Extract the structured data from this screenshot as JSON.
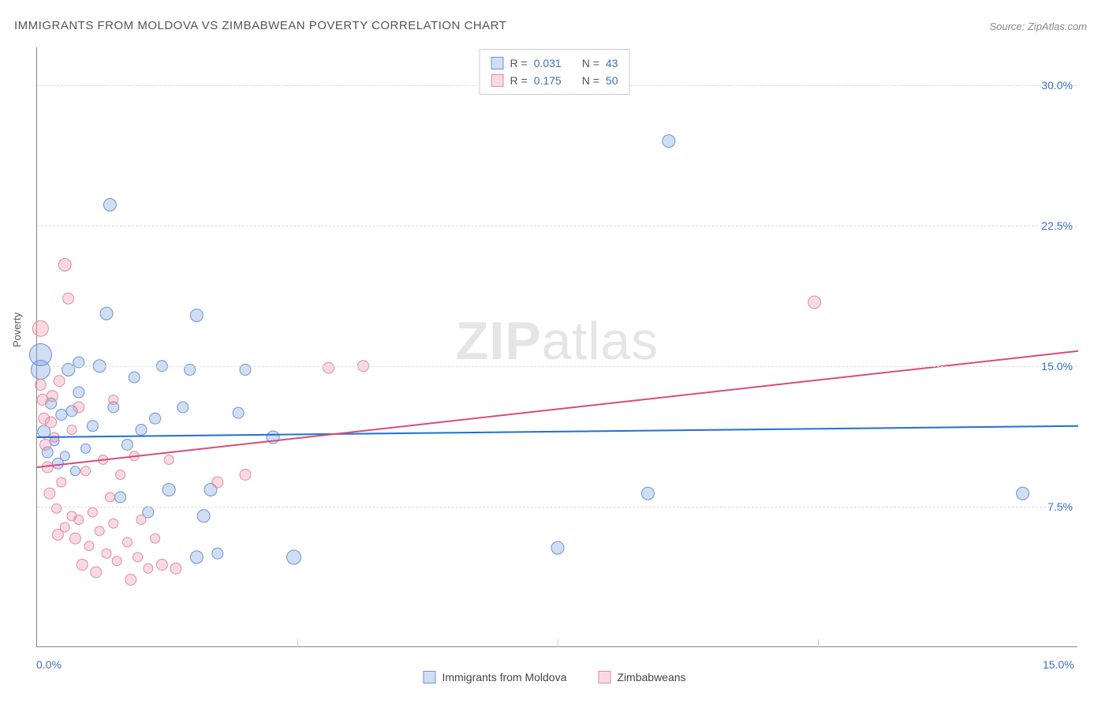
{
  "chart": {
    "type": "scatter",
    "title": "IMMIGRANTS FROM MOLDOVA VS ZIMBABWEAN POVERTY CORRELATION CHART",
    "source_label": "Source: ZipAtlas.com",
    "watermark": "ZIPatlas",
    "y_axis_label": "Poverty",
    "xlim": [
      0,
      15
    ],
    "ylim": [
      0,
      32
    ],
    "x_ticks": [
      {
        "pos": 0,
        "label": "0.0%"
      },
      {
        "pos": 15,
        "label": "15.0%"
      }
    ],
    "y_ticks": [
      {
        "pos": 7.5,
        "label": "7.5%"
      },
      {
        "pos": 15.0,
        "label": "15.0%"
      },
      {
        "pos": 22.5,
        "label": "22.5%"
      },
      {
        "pos": 30.0,
        "label": "30.0%"
      }
    ],
    "x_minor_grid": [
      3.75,
      7.5,
      11.25
    ],
    "background_color": "#ffffff",
    "grid_color": "#dddddd",
    "minor_grid_color": "#eeeeee",
    "axis_color": "#888888",
    "tick_label_color": "#3b6fc9",
    "title_color": "#555555",
    "title_fontsize": 15,
    "tick_fontsize": 14,
    "series": [
      {
        "name": "Immigrants from Moldova",
        "fill": "rgba(120,160,220,0.35)",
        "stroke": "#6a94d4",
        "line_color": "#1f6fd6",
        "line_width": 2,
        "R": 0.031,
        "N": 43,
        "trend": {
          "x1": 0,
          "y1": 11.2,
          "x2": 15,
          "y2": 11.8
        },
        "points": [
          {
            "x": 0.05,
            "y": 14.8,
            "r": 12
          },
          {
            "x": 0.05,
            "y": 15.6,
            "r": 14
          },
          {
            "x": 0.1,
            "y": 11.5,
            "r": 8
          },
          {
            "x": 0.15,
            "y": 10.4,
            "r": 7
          },
          {
            "x": 0.2,
            "y": 13.0,
            "r": 7
          },
          {
            "x": 0.25,
            "y": 11.0,
            "r": 6
          },
          {
            "x": 0.3,
            "y": 9.8,
            "r": 7
          },
          {
            "x": 0.35,
            "y": 12.4,
            "r": 7
          },
          {
            "x": 0.4,
            "y": 10.2,
            "r": 6
          },
          {
            "x": 0.45,
            "y": 14.8,
            "r": 8
          },
          {
            "x": 0.5,
            "y": 12.6,
            "r": 7
          },
          {
            "x": 0.55,
            "y": 9.4,
            "r": 6
          },
          {
            "x": 0.6,
            "y": 13.6,
            "r": 7
          },
          {
            "x": 0.7,
            "y": 10.6,
            "r": 6
          },
          {
            "x": 0.8,
            "y": 11.8,
            "r": 7
          },
          {
            "x": 0.9,
            "y": 15.0,
            "r": 8
          },
          {
            "x": 1.0,
            "y": 17.8,
            "r": 8
          },
          {
            "x": 1.05,
            "y": 23.6,
            "r": 8
          },
          {
            "x": 1.1,
            "y": 12.8,
            "r": 7
          },
          {
            "x": 1.2,
            "y": 8.0,
            "r": 7
          },
          {
            "x": 1.3,
            "y": 10.8,
            "r": 7
          },
          {
            "x": 1.4,
            "y": 14.4,
            "r": 7
          },
          {
            "x": 1.6,
            "y": 7.2,
            "r": 7
          },
          {
            "x": 1.7,
            "y": 12.2,
            "r": 7
          },
          {
            "x": 1.8,
            "y": 15.0,
            "r": 7
          },
          {
            "x": 1.9,
            "y": 8.4,
            "r": 8
          },
          {
            "x": 2.1,
            "y": 12.8,
            "r": 7
          },
          {
            "x": 2.2,
            "y": 14.8,
            "r": 7
          },
          {
            "x": 2.3,
            "y": 17.7,
            "r": 8
          },
          {
            "x": 2.3,
            "y": 4.8,
            "r": 8
          },
          {
            "x": 2.4,
            "y": 7.0,
            "r": 8
          },
          {
            "x": 2.5,
            "y": 8.4,
            "r": 8
          },
          {
            "x": 2.6,
            "y": 5.0,
            "r": 7
          },
          {
            "x": 2.9,
            "y": 12.5,
            "r": 7
          },
          {
            "x": 3.0,
            "y": 14.8,
            "r": 7
          },
          {
            "x": 3.4,
            "y": 11.2,
            "r": 8
          },
          {
            "x": 3.7,
            "y": 4.8,
            "r": 9
          },
          {
            "x": 7.5,
            "y": 5.3,
            "r": 8
          },
          {
            "x": 8.8,
            "y": 8.2,
            "r": 8
          },
          {
            "x": 9.1,
            "y": 27.0,
            "r": 8
          },
          {
            "x": 14.2,
            "y": 8.2,
            "r": 8
          },
          {
            "x": 0.6,
            "y": 15.2,
            "r": 7
          },
          {
            "x": 1.5,
            "y": 11.6,
            "r": 7
          }
        ]
      },
      {
        "name": "Zimbabweans",
        "fill": "rgba(235,140,165,0.32)",
        "stroke": "#e08aa3",
        "line_color": "#d94b7a",
        "line_width": 2,
        "R": 0.175,
        "N": 50,
        "trend": {
          "x1": 0,
          "y1": 9.6,
          "x2": 15,
          "y2": 15.8
        },
        "points": [
          {
            "x": 0.05,
            "y": 17.0,
            "r": 10
          },
          {
            "x": 0.05,
            "y": 14.0,
            "r": 7
          },
          {
            "x": 0.08,
            "y": 13.2,
            "r": 7
          },
          {
            "x": 0.1,
            "y": 12.2,
            "r": 7
          },
          {
            "x": 0.12,
            "y": 10.8,
            "r": 7
          },
          {
            "x": 0.15,
            "y": 9.6,
            "r": 7
          },
          {
            "x": 0.18,
            "y": 8.2,
            "r": 7
          },
          {
            "x": 0.2,
            "y": 12.0,
            "r": 7
          },
          {
            "x": 0.22,
            "y": 13.4,
            "r": 7
          },
          {
            "x": 0.25,
            "y": 11.2,
            "r": 6
          },
          {
            "x": 0.28,
            "y": 7.4,
            "r": 6
          },
          {
            "x": 0.3,
            "y": 6.0,
            "r": 7
          },
          {
            "x": 0.32,
            "y": 14.2,
            "r": 7
          },
          {
            "x": 0.35,
            "y": 8.8,
            "r": 6
          },
          {
            "x": 0.4,
            "y": 20.4,
            "r": 8
          },
          {
            "x": 0.4,
            "y": 6.4,
            "r": 6
          },
          {
            "x": 0.45,
            "y": 18.6,
            "r": 7
          },
          {
            "x": 0.5,
            "y": 7.0,
            "r": 6
          },
          {
            "x": 0.55,
            "y": 5.8,
            "r": 7
          },
          {
            "x": 0.6,
            "y": 12.8,
            "r": 7
          },
          {
            "x": 0.6,
            "y": 6.8,
            "r": 6
          },
          {
            "x": 0.65,
            "y": 4.4,
            "r": 7
          },
          {
            "x": 0.7,
            "y": 9.4,
            "r": 6
          },
          {
            "x": 0.75,
            "y": 5.4,
            "r": 6
          },
          {
            "x": 0.8,
            "y": 7.2,
            "r": 6
          },
          {
            "x": 0.85,
            "y": 4.0,
            "r": 7
          },
          {
            "x": 0.9,
            "y": 6.2,
            "r": 6
          },
          {
            "x": 0.95,
            "y": 10.0,
            "r": 6
          },
          {
            "x": 1.0,
            "y": 5.0,
            "r": 6
          },
          {
            "x": 1.05,
            "y": 8.0,
            "r": 6
          },
          {
            "x": 1.1,
            "y": 13.2,
            "r": 6
          },
          {
            "x": 1.1,
            "y": 6.6,
            "r": 6
          },
          {
            "x": 1.15,
            "y": 4.6,
            "r": 6
          },
          {
            "x": 1.2,
            "y": 9.2,
            "r": 6
          },
          {
            "x": 1.3,
            "y": 5.6,
            "r": 6
          },
          {
            "x": 1.35,
            "y": 3.6,
            "r": 7
          },
          {
            "x": 1.4,
            "y": 10.2,
            "r": 6
          },
          {
            "x": 1.45,
            "y": 4.8,
            "r": 6
          },
          {
            "x": 1.5,
            "y": 6.8,
            "r": 6
          },
          {
            "x": 1.6,
            "y": 4.2,
            "r": 6
          },
          {
            "x": 1.7,
            "y": 5.8,
            "r": 6
          },
          {
            "x": 1.8,
            "y": 4.4,
            "r": 7
          },
          {
            "x": 1.9,
            "y": 10.0,
            "r": 6
          },
          {
            "x": 2.0,
            "y": 4.2,
            "r": 7
          },
          {
            "x": 2.6,
            "y": 8.8,
            "r": 7
          },
          {
            "x": 3.0,
            "y": 9.2,
            "r": 7
          },
          {
            "x": 4.2,
            "y": 14.9,
            "r": 7
          },
          {
            "x": 4.7,
            "y": 15.0,
            "r": 7
          },
          {
            "x": 11.2,
            "y": 18.4,
            "r": 8
          },
          {
            "x": 0.5,
            "y": 11.6,
            "r": 6
          }
        ]
      }
    ],
    "legend_top": {
      "rows": [
        {
          "swatch_fill": "rgba(120,160,220,0.35)",
          "swatch_stroke": "#6a94d4",
          "r_label": "R =",
          "r_val": "0.031",
          "n_label": "N =",
          "n_val": "43"
        },
        {
          "swatch_fill": "rgba(235,140,165,0.32)",
          "swatch_stroke": "#e08aa3",
          "r_label": "R =",
          "r_val": "0.175",
          "n_label": "N =",
          "n_val": "50"
        }
      ]
    },
    "legend_bottom": [
      {
        "swatch_fill": "rgba(120,160,220,0.35)",
        "swatch_stroke": "#6a94d4",
        "label": "Immigrants from Moldova"
      },
      {
        "swatch_fill": "rgba(235,140,165,0.32)",
        "swatch_stroke": "#e08aa3",
        "label": "Zimbabweans"
      }
    ]
  }
}
